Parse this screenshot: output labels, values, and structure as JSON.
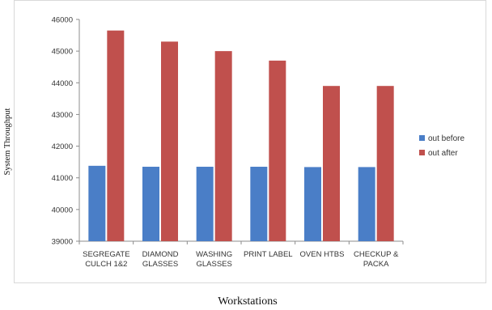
{
  "chart_data": {
    "type": "bar",
    "xlabel": "Workstations",
    "ylabel": "System Throughput",
    "ylim": [
      39000,
      46000
    ],
    "yticks": [
      39000,
      40000,
      41000,
      42000,
      43000,
      44000,
      45000,
      46000
    ],
    "grid": false,
    "legend": "right",
    "categories": [
      [
        "SEGREGATE",
        "CULCH 1&2"
      ],
      [
        "DIAMOND",
        "GLASSES"
      ],
      [
        "WASHING",
        "GLASSES"
      ],
      [
        "PRINT LABEL"
      ],
      [
        "OVEN HTBS"
      ],
      [
        "CHECKUP &",
        "PACKA"
      ]
    ],
    "series": [
      {
        "name": "out before",
        "color": "#4a7ec7",
        "values": [
          41380,
          41350,
          41350,
          41350,
          41340,
          41340
        ]
      },
      {
        "name": "out after",
        "color": "#c0504d",
        "values": [
          45650,
          45300,
          45000,
          44700,
          43900,
          43900
        ]
      }
    ]
  }
}
